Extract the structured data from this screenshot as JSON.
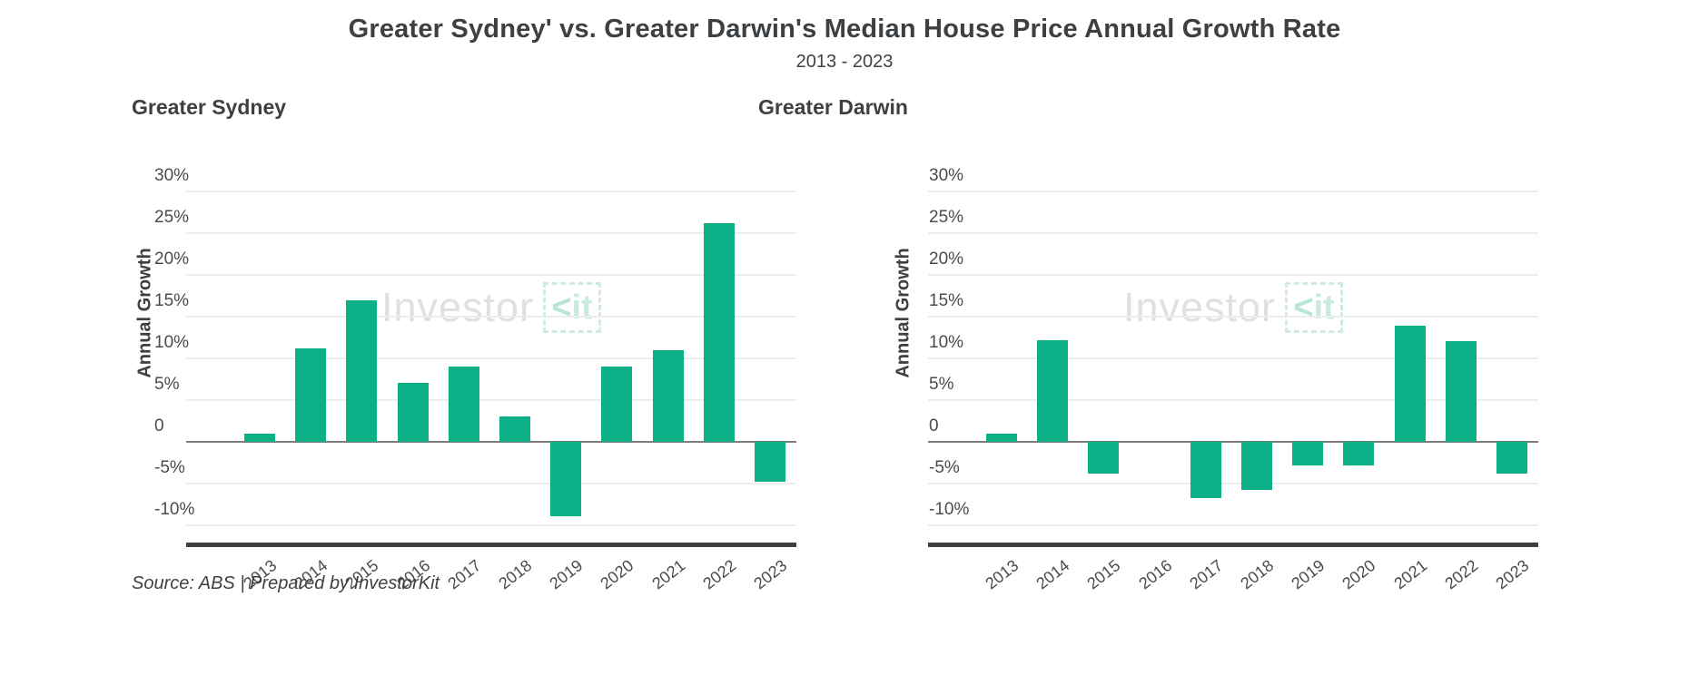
{
  "header": {
    "title": "Greater Sydney' vs. Greater Darwin's Median House Price Annual Growth Rate",
    "subtitle": "2013 - 2023"
  },
  "footer": {
    "source": "Source: ABS | Prepared by InvestorKit"
  },
  "watermark": {
    "brand_gray": "Investor",
    "brand_k": "<",
    "brand_it": "it"
  },
  "colors": {
    "bar": "#0daf87",
    "grid": "#ededed",
    "zero_line": "#7d7d7d",
    "axis_line": "#3d4043",
    "heading_text": "#3d4043",
    "tick_text": "#4b4b4b",
    "watermark_gray": "#e0e0e0",
    "watermark_teal": "#c9eae1"
  },
  "chart_data": [
    {
      "type": "bar",
      "title": "Greater Sydney",
      "ylabel": "Annual Growth",
      "xlabel": "",
      "categories": [
        "2013",
        "2014",
        "2015",
        "2016",
        "2017",
        "2018",
        "2019",
        "2020",
        "2021",
        "2022",
        "2023"
      ],
      "values": [
        1.0,
        11.2,
        16.9,
        7.0,
        9.0,
        3.0,
        -8.9,
        9.0,
        11.0,
        26.2,
        -4.8
      ],
      "ylim": [
        -12.1,
        30
      ],
      "yticks": [
        {
          "label": "30%",
          "value": 30
        },
        {
          "label": "25%",
          "value": 25
        },
        {
          "label": "20%",
          "value": 20
        },
        {
          "label": "15%",
          "value": 15
        },
        {
          "label": "10%",
          "value": 10
        },
        {
          "label": "5%",
          "value": 5
        },
        {
          "label": "0",
          "value": 0
        },
        {
          "label": "-5%",
          "value": -5
        },
        {
          "label": "-10%",
          "value": -10
        }
      ],
      "grid": true,
      "legend": "none"
    },
    {
      "type": "bar",
      "title": "Greater Darwin",
      "ylabel": "Annual Growth",
      "xlabel": "",
      "categories": [
        "2013",
        "2014",
        "2015",
        "2016",
        "2017",
        "2018",
        "2019",
        "2020",
        "2021",
        "2022",
        "2023"
      ],
      "values": [
        0.9,
        12.2,
        -3.8,
        0,
        -6.8,
        -5.8,
        -2.9,
        -2.9,
        13.9,
        12.1,
        -3.8
      ],
      "ylim": [
        -12.1,
        30
      ],
      "yticks": [
        {
          "label": "30%",
          "value": 30
        },
        {
          "label": "25%",
          "value": 25
        },
        {
          "label": "20%",
          "value": 20
        },
        {
          "label": "15%",
          "value": 15
        },
        {
          "label": "10%",
          "value": 10
        },
        {
          "label": "5%",
          "value": 5
        },
        {
          "label": "0",
          "value": 0
        },
        {
          "label": "-5%",
          "value": -5
        },
        {
          "label": "-10%",
          "value": -10
        }
      ],
      "grid": true,
      "legend": "none"
    }
  ]
}
